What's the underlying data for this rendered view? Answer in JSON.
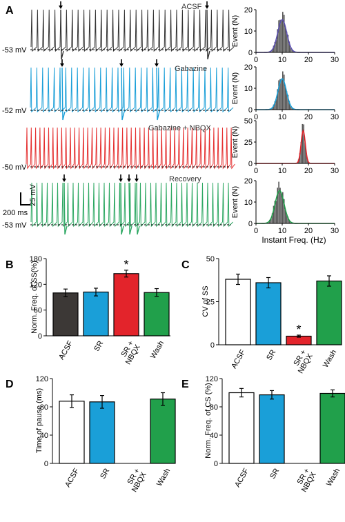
{
  "panels": {
    "A": "A",
    "B": "B",
    "C": "C",
    "D": "D",
    "E": "E"
  },
  "traces": [
    {
      "condition": "ACSF",
      "baseline": "-53 mV",
      "color": "#333333",
      "cs_marks": 2
    },
    {
      "condition": "Gabazine",
      "baseline": "-52 mV",
      "color": "#1a9fd8",
      "cs_marks": 3
    },
    {
      "condition": "Gabazine + NBQX",
      "baseline": "-50 mV",
      "color": "#e53030",
      "cs_marks": 0
    },
    {
      "condition": "Recovery",
      "baseline": "-53 mV",
      "color": "#2ea863",
      "cs_marks": 4
    }
  ],
  "scalebar": {
    "time": "200 ms",
    "voltage": "25 mV"
  },
  "colors": {
    "acsf": "#3c3836",
    "sr": "#1a9fd8",
    "nbqx": "#e3242b",
    "wash": "#21a04b",
    "hist_bar": "#555555"
  },
  "chart_data": [
    {
      "type": "bar",
      "panel": "A-histograms",
      "xlabel": "Instant Freq. (Hz)",
      "ylabel": "Event (N)",
      "xlim": [
        0,
        30
      ],
      "xticks": [
        "0",
        "10",
        "20",
        "30"
      ],
      "series": [
        {
          "name": "ACSF",
          "ylim": [
            0,
            20
          ],
          "yticks": [
            "0",
            "10",
            "20"
          ],
          "peak_hz": 10,
          "peak_n": 18,
          "sd_hz": 1.7
        },
        {
          "name": "Gabazine",
          "ylim": [
            0,
            20
          ],
          "yticks": [
            "0",
            "10",
            "20"
          ],
          "peak_hz": 10,
          "peak_n": 17,
          "sd_hz": 1.6
        },
        {
          "name": "Gabazine + NBQX",
          "ylim": [
            0,
            50
          ],
          "yticks": [
            "0",
            "25",
            "50"
          ],
          "peak_hz": 18,
          "peak_n": 45,
          "sd_hz": 0.8
        },
        {
          "name": "Recovery",
          "ylim": [
            0,
            20
          ],
          "yticks": [
            "0",
            "10",
            "20"
          ],
          "peak_hz": 9,
          "peak_n": 18,
          "sd_hz": 1.7
        }
      ]
    },
    {
      "type": "bar",
      "panel": "B",
      "categories": [
        "ACSF",
        "SR",
        "SR + NBQX",
        "Wash"
      ],
      "values": [
        100,
        102,
        145,
        101
      ],
      "errors": [
        9,
        9,
        8,
        9
      ],
      "significant": [
        false,
        false,
        true,
        false
      ],
      "ylabel": "Norm. Freq. of SS(%)",
      "ylim": [
        0,
        180
      ],
      "yticks": [
        "0",
        "60",
        "120",
        "180"
      ],
      "fills": [
        "#3c3836",
        "#1a9fd8",
        "#e3242b",
        "#21a04b"
      ]
    },
    {
      "type": "bar",
      "panel": "C",
      "categories": [
        "ACSF",
        "SR",
        "SR + NBQX",
        "Wash"
      ],
      "values": [
        38,
        36,
        5,
        37
      ],
      "errors": [
        3,
        3,
        0.6,
        3
      ],
      "significant": [
        false,
        false,
        true,
        false
      ],
      "ylabel": "CV of SS",
      "ylim": [
        0,
        50
      ],
      "yticks": [
        "0",
        "25",
        "50"
      ],
      "fills": [
        "#ffffff",
        "#1a9fd8",
        "#e3242b",
        "#21a04b"
      ]
    },
    {
      "type": "bar",
      "panel": "D",
      "categories": [
        "ACSF",
        "SR",
        "SR + NBQX",
        "Wash"
      ],
      "values": [
        88,
        87,
        null,
        91
      ],
      "errors": [
        9,
        9,
        0,
        9
      ],
      "significant": [
        false,
        false,
        false,
        false
      ],
      "ylabel": "Time of  pause (ms)",
      "ylim": [
        0,
        120
      ],
      "yticks": [
        "0",
        "40",
        "80",
        "120"
      ],
      "fills": [
        "#ffffff",
        "#1a9fd8",
        "#e3242b",
        "#21a04b"
      ]
    },
    {
      "type": "bar",
      "panel": "E",
      "categories": [
        "ACSF",
        "SR",
        "SR + NBQX",
        "Wash"
      ],
      "values": [
        100,
        97,
        null,
        99
      ],
      "errors": [
        6,
        6,
        0,
        5
      ],
      "significant": [
        false,
        false,
        false,
        false
      ],
      "ylabel": "Norm. Freq. of CS (%)",
      "ylim": [
        0,
        120
      ],
      "yticks": [
        "0",
        "40",
        "80",
        "120"
      ],
      "fills": [
        "#ffffff",
        "#1a9fd8",
        "#e3242b",
        "#21a04b"
      ]
    }
  ],
  "sig_marker": "*"
}
